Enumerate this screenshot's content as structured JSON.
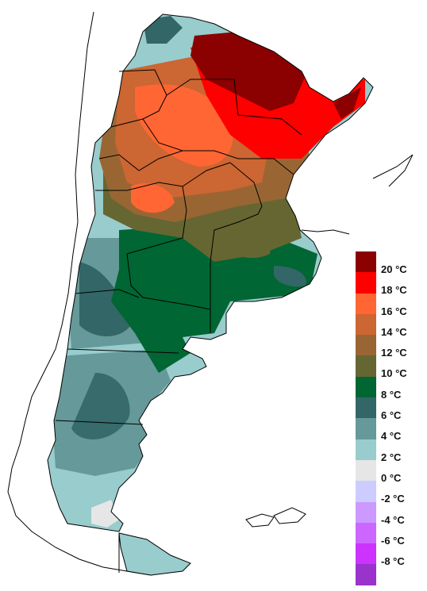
{
  "map": {
    "legend": {
      "bins": [
        {
          "label": "20 °C",
          "color": "#8b0000"
        },
        {
          "label": "18 °C",
          "color": "#ff0000"
        },
        {
          "label": "16 °C",
          "color": "#ff6633"
        },
        {
          "label": "14 °C",
          "color": "#cc6633"
        },
        {
          "label": "12 °C",
          "color": "#996633"
        },
        {
          "label": "10 °C",
          "color": "#666633"
        },
        {
          "label": "8 °C",
          "color": "#006633"
        },
        {
          "label": "6 °C",
          "color": "#336666"
        },
        {
          "label": "4 °C",
          "color": "#669999"
        },
        {
          "label": "2 °C",
          "color": "#99cccc"
        },
        {
          "label": "0 °C",
          "color": "#e6e6e6"
        },
        {
          "label": "-2 °C",
          "color": "#ccccff"
        },
        {
          "label": "-4 °C",
          "color": "#cc99ff"
        },
        {
          "label": "-6 °C",
          "color": "#cc66ff"
        },
        {
          "label": "-8 °C",
          "color": "#cc33ff"
        },
        {
          "label": "",
          "color": "#9933cc"
        }
      ]
    },
    "colors": {
      "outline": "#000000",
      "background": "#ffffff"
    }
  }
}
